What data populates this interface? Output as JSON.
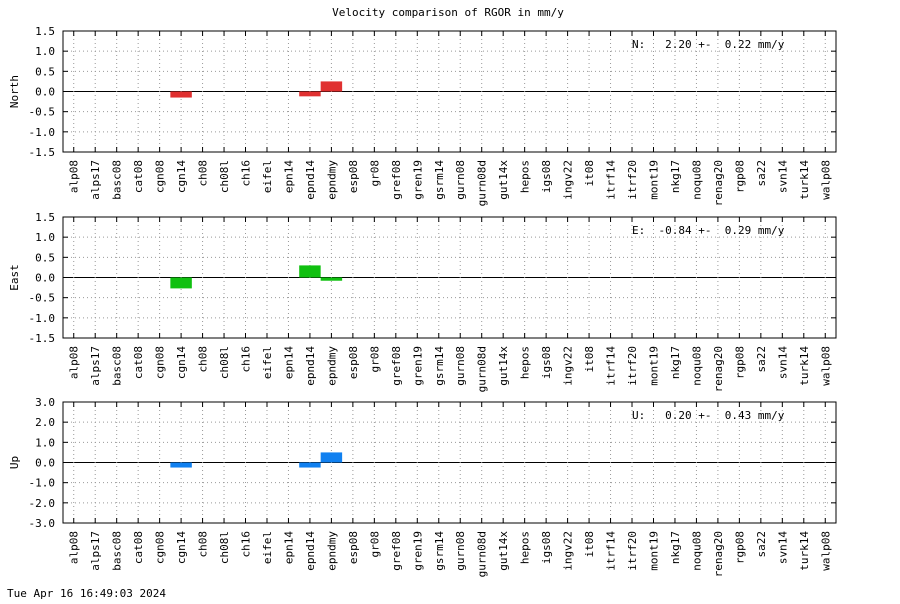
{
  "title": "Velocity comparison of RGOR in mm/y",
  "footer": "Tue Apr 16 16:49:03 2024",
  "chart_data": [
    {
      "type": "bar",
      "ylabel": "North",
      "annotation": "N:   2.20 +-  0.22 mm/y",
      "color": "#e03030",
      "grid": true,
      "categories": [
        "alp08",
        "alps17",
        "basc08",
        "cat08",
        "cgn08",
        "cgn14",
        "ch08",
        "ch08l",
        "ch16",
        "eifel",
        "epn14",
        "epnd14",
        "epndmy",
        "esp08",
        "gr08",
        "gref08",
        "gren19",
        "gsrm14",
        "gurn08",
        "gurn08d",
        "gut14x",
        "hepos",
        "igs08",
        "ingv22",
        "it08",
        "itrf14",
        "itrf20",
        "mont19",
        "nkg17",
        "noqu08",
        "renag20",
        "rgp08",
        "sa22",
        "svn14",
        "turk14",
        "walp08"
      ],
      "values": [
        null,
        null,
        null,
        null,
        null,
        -0.15,
        null,
        null,
        null,
        null,
        null,
        -0.12,
        0.25,
        null,
        null,
        null,
        null,
        null,
        null,
        null,
        null,
        null,
        null,
        null,
        null,
        null,
        null,
        null,
        null,
        null,
        null,
        null,
        null,
        null,
        null,
        null
      ],
      "ylim": [
        -1.5,
        1.5
      ],
      "yticks": [
        -1.5,
        {
          "value": -1,
          "label": "-1.0"
        },
        -0.5,
        {
          "value": 0,
          "label": "0.0"
        },
        0.5,
        {
          "value": 1,
          "label": "1.0"
        },
        1.5
      ]
    },
    {
      "type": "bar",
      "ylabel": "East",
      "annotation": "E:  -0.84 +-  0.29 mm/y",
      "color": "#10c010",
      "grid": true,
      "categories": [
        "alp08",
        "alps17",
        "basc08",
        "cat08",
        "cgn08",
        "cgn14",
        "ch08",
        "ch08l",
        "ch16",
        "eifel",
        "epn14",
        "epnd14",
        "epndmy",
        "esp08",
        "gr08",
        "gref08",
        "gren19",
        "gsrm14",
        "gurn08",
        "gurn08d",
        "gut14x",
        "hepos",
        "igs08",
        "ingv22",
        "it08",
        "itrf14",
        "itrf20",
        "mont19",
        "nkg17",
        "noqu08",
        "renag20",
        "rgp08",
        "sa22",
        "svn14",
        "turk14",
        "walp08"
      ],
      "values": [
        null,
        null,
        null,
        null,
        null,
        -0.27,
        null,
        null,
        null,
        null,
        null,
        0.3,
        -0.08,
        null,
        null,
        null,
        null,
        null,
        null,
        null,
        null,
        null,
        null,
        null,
        null,
        null,
        null,
        null,
        null,
        null,
        null,
        null,
        null,
        null,
        null,
        null
      ],
      "ylim": [
        -1.5,
        1.5
      ],
      "yticks": [
        -1.5,
        {
          "value": -1,
          "label": "-1.0"
        },
        -0.5,
        {
          "value": 0,
          "label": "0.0"
        },
        0.5,
        {
          "value": 1,
          "label": "1.0"
        },
        1.5
      ]
    },
    {
      "type": "bar",
      "ylabel": "Up",
      "annotation": "U:   0.20 +-  0.43 mm/y",
      "color": "#1080f0",
      "grid": true,
      "categories": [
        "alp08",
        "alps17",
        "basc08",
        "cat08",
        "cgn08",
        "cgn14",
        "ch08",
        "ch08l",
        "ch16",
        "eifel",
        "epn14",
        "epnd14",
        "epndmy",
        "esp08",
        "gr08",
        "gref08",
        "gren19",
        "gsrm14",
        "gurn08",
        "gurn08d",
        "gut14x",
        "hepos",
        "igs08",
        "ingv22",
        "it08",
        "itrf14",
        "itrf20",
        "mont19",
        "nkg17",
        "noqu08",
        "renag20",
        "rgp08",
        "sa22",
        "svn14",
        "turk14",
        "walp08"
      ],
      "values": [
        null,
        null,
        null,
        null,
        null,
        -0.25,
        null,
        null,
        null,
        null,
        null,
        -0.25,
        0.5,
        null,
        null,
        null,
        null,
        null,
        null,
        null,
        null,
        null,
        null,
        null,
        null,
        null,
        null,
        null,
        null,
        null,
        null,
        null,
        null,
        null,
        null,
        null
      ],
      "ylim": [
        -3,
        3
      ],
      "yticks": [
        {
          "value": -3,
          "label": "-3.0"
        },
        {
          "value": -2,
          "label": "-2.0"
        },
        {
          "value": -1,
          "label": "-1.0"
        },
        {
          "value": 0,
          "label": "0.0"
        },
        {
          "value": 1,
          "label": "1.0"
        },
        {
          "value": 2,
          "label": "2.0"
        },
        {
          "value": 3,
          "label": "3.0"
        }
      ]
    }
  ]
}
